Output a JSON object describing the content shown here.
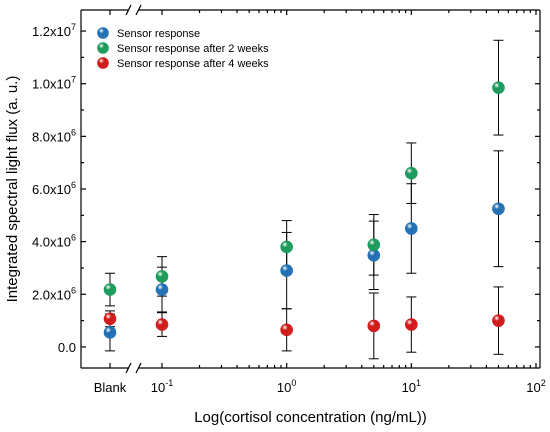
{
  "chart_data": {
    "type": "scatter",
    "xlabel": "Log(cortisol concentration (ng/mL))",
    "ylabel": "Integrated spectral light flux (a. u.)",
    "x_scale": "log",
    "xlim": [
      0.05,
      100
    ],
    "ylim": [
      -800000,
      12800000
    ],
    "x_ticks": [
      {
        "label": "Blank",
        "value": null
      },
      {
        "label": "10",
        "exp": "-1",
        "value": 0.1
      },
      {
        "label": "10",
        "exp": "0",
        "value": 1
      },
      {
        "label": "10",
        "exp": "1",
        "value": 10
      },
      {
        "label": "10",
        "exp": "2",
        "value": 100
      }
    ],
    "y_ticks": [
      {
        "label": "0.0",
        "exp": "",
        "value": 0
      },
      {
        "label": "2.0x10",
        "exp": "6",
        "value": 2000000
      },
      {
        "label": "4.0x10",
        "exp": "6",
        "value": 4000000
      },
      {
        "label": "6.0x10",
        "exp": "6",
        "value": 6000000
      },
      {
        "label": "8.0x10",
        "exp": "6",
        "value": 8000000
      },
      {
        "label": "1.0x10",
        "exp": "7",
        "value": 10000000
      },
      {
        "label": "1.2x10",
        "exp": "7",
        "value": 12000000
      }
    ],
    "legend_position": "top-left",
    "axis_break": true,
    "series": [
      {
        "name": "Sensor response",
        "color": "#1f6fb4",
        "points": [
          {
            "x": "Blank",
            "y": 550000,
            "err": 700000
          },
          {
            "x": 0.1,
            "y": 2180000,
            "err": 850000
          },
          {
            "x": 1,
            "y": 2900000,
            "err": 1450000
          },
          {
            "x": 5,
            "y": 3480000,
            "err": 1300000
          },
          {
            "x": 10,
            "y": 4500000,
            "err": 1700000
          },
          {
            "x": 50,
            "y": 5250000,
            "err": 2200000
          }
        ]
      },
      {
        "name": "Sensor response after 2 weeks",
        "color": "#1a9a5a",
        "points": [
          {
            "x": "Blank",
            "y": 2180000,
            "err": 620000
          },
          {
            "x": 0.1,
            "y": 2680000,
            "err": 750000
          },
          {
            "x": 1,
            "y": 3800000,
            "err": 1000000
          },
          {
            "x": 5,
            "y": 3880000,
            "err": 1150000
          },
          {
            "x": 10,
            "y": 6600000,
            "err": 1150000
          },
          {
            "x": 50,
            "y": 9850000,
            "err": 1800000
          }
        ]
      },
      {
        "name": "Sensor response after 4 weeks",
        "color": "#d01818",
        "points": [
          {
            "x": "Blank",
            "y": 1070000,
            "err": 300000
          },
          {
            "x": 0.1,
            "y": 850000,
            "err": 450000
          },
          {
            "x": 1,
            "y": 650000,
            "err": 800000
          },
          {
            "x": 5,
            "y": 800000,
            "err": 1250000
          },
          {
            "x": 10,
            "y": 850000,
            "err": 1050000
          },
          {
            "x": 50,
            "y": 1000000,
            "err": 1280000
          }
        ]
      }
    ]
  }
}
